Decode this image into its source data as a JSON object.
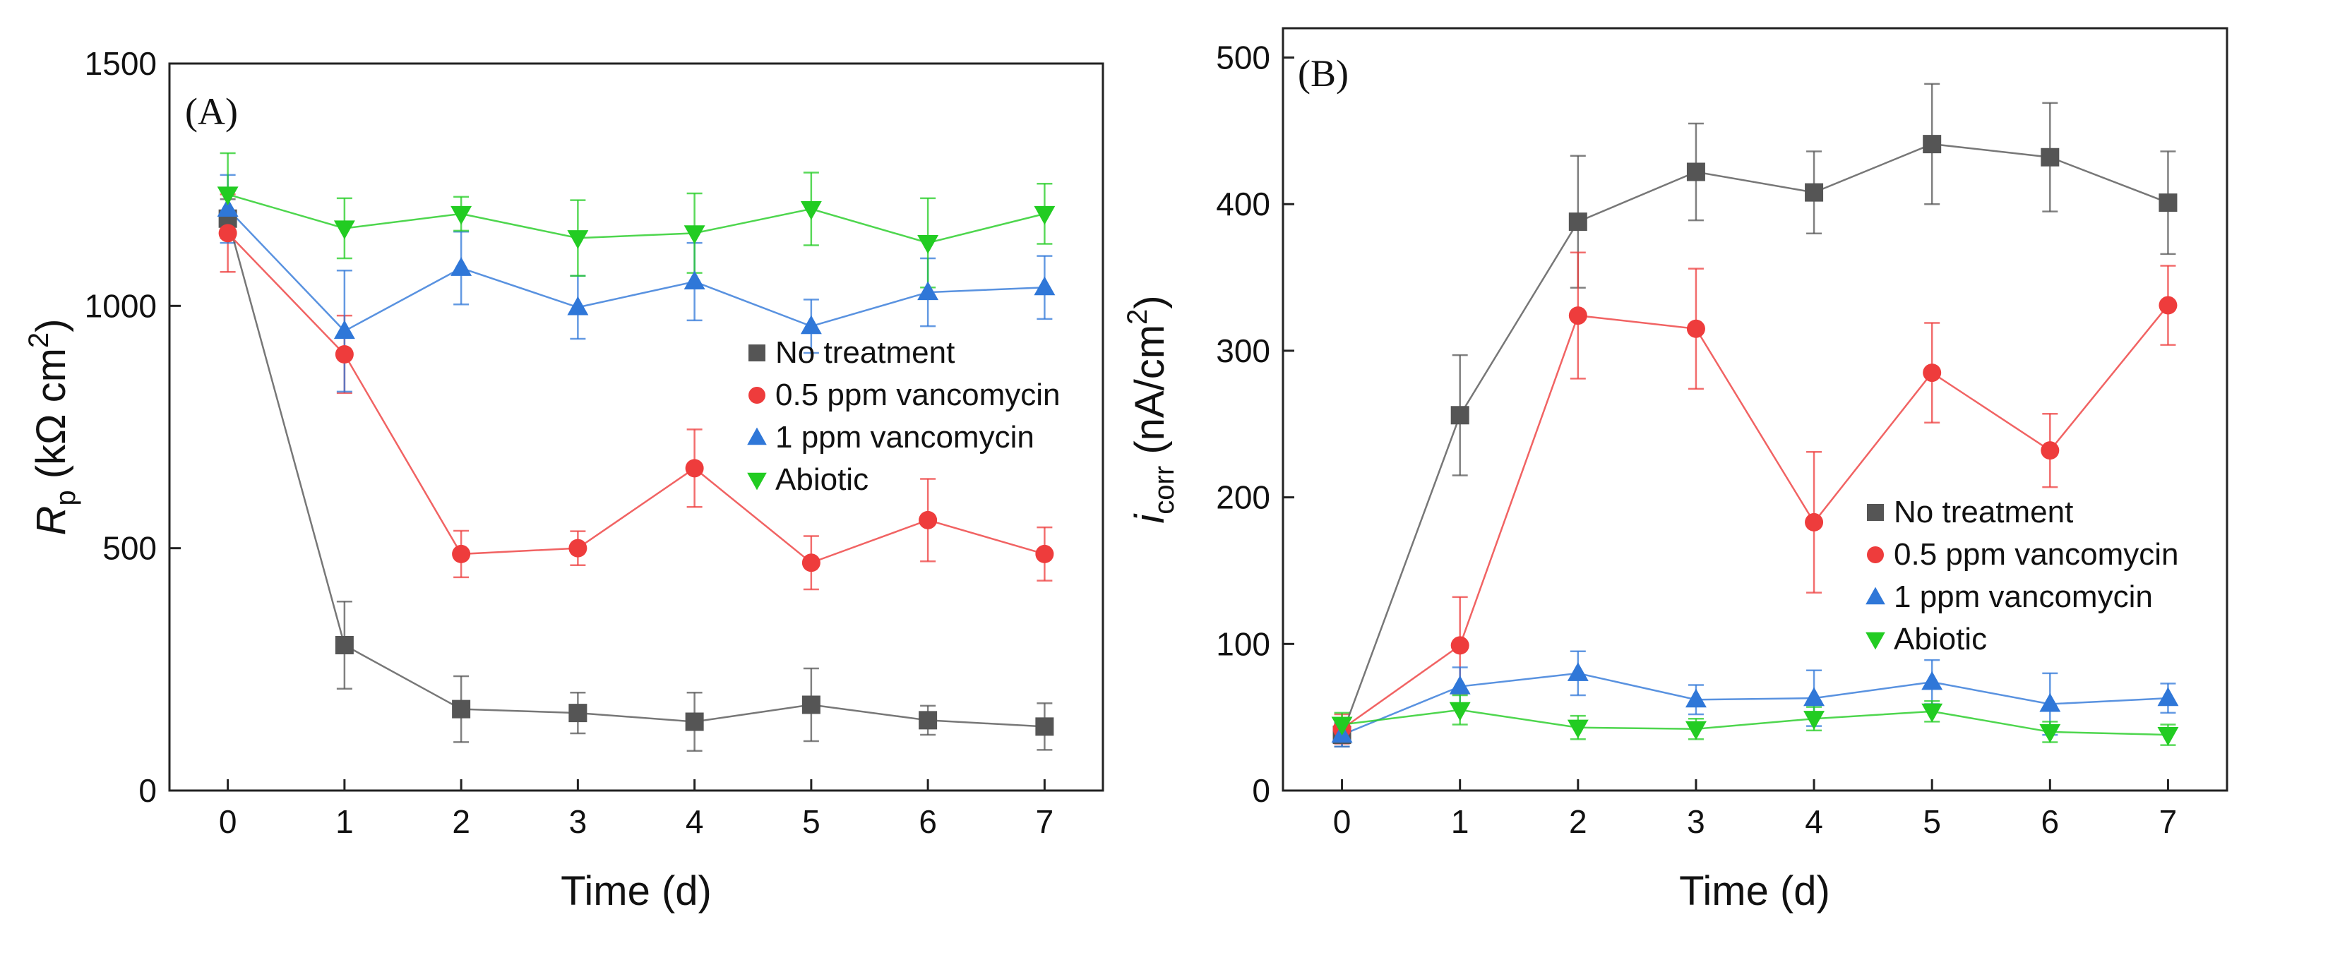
{
  "chart_data": [
    {
      "type": "line",
      "panel_label": "(A)",
      "xlabel": "Time (d)",
      "ylabel_main": "R",
      "ylabel_sub": "p",
      "ylabel_unit": " (kΩ cm",
      "ylabel_sup": "2",
      "ylabel_close": ")",
      "xlim": [
        -0.5,
        7.5
      ],
      "ylim": [
        0,
        1500
      ],
      "x_ticks": [
        0,
        1,
        2,
        3,
        4,
        5,
        6,
        7
      ],
      "y_ticks": [
        0,
        500,
        1000,
        1500
      ],
      "x_tick_labels": [
        "0",
        "1",
        "2",
        "3",
        "4",
        "5",
        "6",
        "7"
      ],
      "y_tick_labels": [
        "0",
        "500",
        "1000",
        "1500"
      ],
      "legend_position": "center-right",
      "x": [
        0,
        1,
        2,
        3,
        4,
        5,
        6,
        7
      ],
      "series": [
        {
          "name": "No treatment",
          "color": "#555555",
          "marker": "square",
          "values": [
            1180,
            300,
            168,
            160,
            142,
            177,
            145,
            132
          ],
          "errors": [
            40,
            90,
            68,
            42,
            60,
            75,
            30,
            48
          ]
        },
        {
          "name": "0.5 ppm vancomycin",
          "color": "#ee3c3c",
          "marker": "circle",
          "values": [
            1150,
            900,
            488,
            500,
            665,
            470,
            558,
            488
          ],
          "errors": [
            80,
            80,
            48,
            35,
            80,
            55,
            85,
            55
          ]
        },
        {
          "name": "1 ppm vancomycin",
          "color": "#2f77d8",
          "marker": "triangle-up",
          "values": [
            1200,
            948,
            1078,
            997,
            1050,
            958,
            1028,
            1038
          ],
          "errors": [
            70,
            125,
            75,
            65,
            80,
            55,
            70,
            65
          ]
        },
        {
          "name": "Abiotic",
          "color": "#22cc22",
          "marker": "triangle-down",
          "values": [
            1230,
            1160,
            1190,
            1140,
            1150,
            1200,
            1130,
            1190
          ],
          "errors": [
            85,
            62,
            35,
            78,
            82,
            75,
            92,
            62
          ]
        }
      ]
    },
    {
      "type": "line",
      "panel_label": "(B)",
      "xlabel": "Time (d)",
      "ylabel_main": "i",
      "ylabel_sub": "corr",
      "ylabel_unit": " (nA/cm",
      "ylabel_sup": "2",
      "ylabel_close": ")",
      "xlim": [
        -0.5,
        7.5
      ],
      "ylim": [
        0,
        520
      ],
      "x_ticks": [
        0,
        1,
        2,
        3,
        4,
        5,
        6,
        7
      ],
      "y_ticks": [
        0,
        100,
        200,
        300,
        400,
        500
      ],
      "x_tick_labels": [
        "0",
        "1",
        "2",
        "3",
        "4",
        "5",
        "6",
        "7"
      ],
      "y_tick_labels": [
        "0",
        "100",
        "200",
        "300",
        "400",
        "500"
      ],
      "legend_position": "lower-right",
      "x": [
        0,
        1,
        2,
        3,
        4,
        5,
        6,
        7
      ],
      "series": [
        {
          "name": "No treatment",
          "color": "#555555",
          "marker": "square",
          "values": [
            38,
            256,
            388,
            422,
            408,
            441,
            432,
            401
          ],
          "errors": [
            8,
            41,
            45,
            33,
            28,
            41,
            37,
            35
          ]
        },
        {
          "name": "0.5 ppm vancomycin",
          "color": "#ee3c3c",
          "marker": "circle",
          "values": [
            42,
            99,
            324,
            315,
            183,
            285,
            232,
            331
          ],
          "errors": [
            10,
            33,
            43,
            41,
            48,
            34,
            25,
            27
          ]
        },
        {
          "name": "1 ppm vancomycin",
          "color": "#2f77d8",
          "marker": "triangle-up",
          "values": [
            38,
            71,
            80,
            62,
            63,
            74,
            59,
            63
          ],
          "errors": [
            8,
            13,
            15,
            10,
            19,
            15,
            21,
            10
          ]
        },
        {
          "name": "Abiotic",
          "color": "#22cc22",
          "marker": "triangle-down",
          "values": [
            45,
            55,
            43,
            42,
            49,
            54,
            40,
            38
          ],
          "errors": [
            8,
            10,
            8,
            7,
            8,
            7,
            7,
            7
          ]
        }
      ]
    }
  ]
}
